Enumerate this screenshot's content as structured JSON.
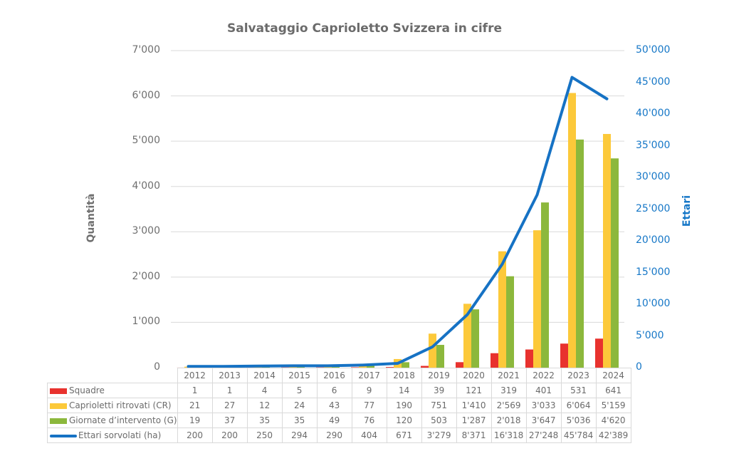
{
  "chart_data": {
    "type": "bar",
    "title": "Salvataggio Caprioletto Svizzera in cifre",
    "categories": [
      "2012",
      "2013",
      "2014",
      "2015",
      "2016",
      "2017",
      "2018",
      "2019",
      "2020",
      "2021",
      "2022",
      "2023",
      "2024"
    ],
    "series": [
      {
        "name": "Squadre",
        "type": "bar",
        "axis": "left",
        "color": "#e8322e",
        "values": [
          1,
          1,
          4,
          5,
          6,
          9,
          14,
          39,
          121,
          319,
          401,
          531,
          641
        ],
        "labels": [
          "1",
          "1",
          "4",
          "5",
          "6",
          "9",
          "14",
          "39",
          "121",
          "319",
          "401",
          "531",
          "641"
        ]
      },
      {
        "name": "Caprioletti ritrovati (CR)",
        "type": "bar",
        "axis": "left",
        "color": "#fcc93a",
        "values": [
          21,
          27,
          12,
          24,
          43,
          77,
          190,
          751,
          1410,
          2569,
          3033,
          6064,
          5159
        ],
        "labels": [
          "21",
          "27",
          "12",
          "24",
          "43",
          "77",
          "190",
          "751",
          "1'410",
          "2'569",
          "3'033",
          "6'064",
          "5'159"
        ]
      },
      {
        "name": "Giornate d’intervento (G)",
        "type": "bar",
        "axis": "left",
        "color": "#8cb83c",
        "values": [
          19,
          37,
          35,
          35,
          49,
          76,
          120,
          503,
          1287,
          2018,
          3647,
          5036,
          4620
        ],
        "labels": [
          "19",
          "37",
          "35",
          "35",
          "49",
          "76",
          "120",
          "503",
          "1'287",
          "2'018",
          "3'647",
          "5'036",
          "4'620"
        ]
      },
      {
        "name": "Ettari sorvolati (ha)",
        "type": "line",
        "axis": "right",
        "color": "#1672c4",
        "values": [
          200,
          200,
          250,
          294,
          290,
          404,
          671,
          3279,
          8371,
          16318,
          27248,
          45784,
          42389
        ],
        "labels": [
          "200",
          "200",
          "250",
          "294",
          "290",
          "404",
          "671",
          "3'279",
          "8'371",
          "16'318",
          "27'248",
          "45'784",
          "42'389"
        ]
      }
    ],
    "ylabel": "Quantità",
    "ylabel_right": "Ettari",
    "ylim": [
      0,
      7000
    ],
    "ylim_right": [
      0,
      50000
    ],
    "yticks": [
      "0",
      "1'000",
      "2'000",
      "3'000",
      "4'000",
      "5'000",
      "6'000",
      "7'000"
    ],
    "yticks_right": [
      "0",
      "5'000",
      "10'000",
      "15'000",
      "20'000",
      "25'000",
      "30'000",
      "35'000",
      "40'000",
      "45'000",
      "50'000"
    ],
    "grid": true,
    "legend_position": "data-table"
  }
}
